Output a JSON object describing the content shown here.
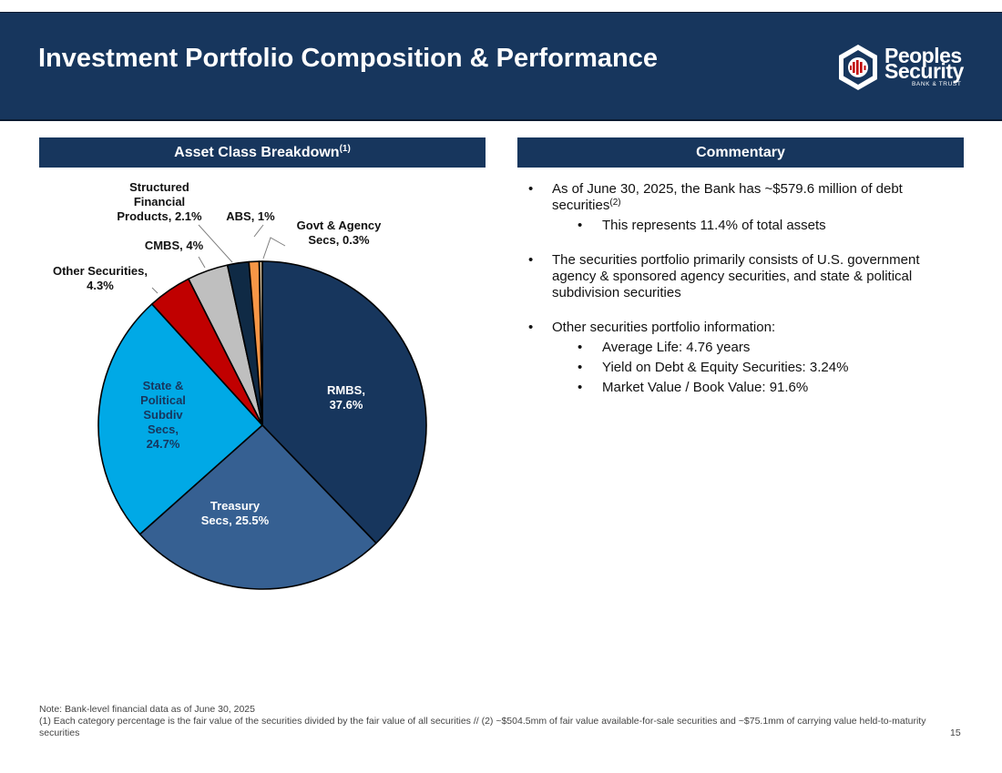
{
  "header": {
    "title": "Investment Portfolio Composition & Performance",
    "logo_line1": "Peoples",
    "logo_line2": "Security",
    "logo_tagline": "BANK & TRUST",
    "banner_color": "#17365d"
  },
  "left_panel": {
    "heading": "Asset Class Breakdown",
    "heading_note": "(1)"
  },
  "right_panel": {
    "heading": "Commentary",
    "bullets": [
      {
        "text": "As of June 30, 2025, the Bank has ~$579.6 million of debt securities",
        "note": "(2)",
        "sub": [
          "This represents 11.4% of total assets"
        ]
      },
      {
        "text": "The securities portfolio primarily consists of U.S. government agency & sponsored agency securities, and state & political subdivision securities",
        "sub": []
      },
      {
        "text": "Other securities portfolio information:",
        "sub": [
          "Average Life: 4.76 years",
          "Yield on Debt & Equity Securities: 3.24%",
          "Market Value / Book Value: 91.6%"
        ]
      }
    ]
  },
  "chart_data": {
    "type": "pie",
    "title": "Asset Class Breakdown",
    "start": "12 o'clock, clockwise",
    "slices": [
      {
        "name": "RMBS",
        "value": 37.6,
        "color": "#17365d",
        "label_lines": [
          "RMBS,",
          "37.6%"
        ],
        "label_color": "#ffffff"
      },
      {
        "name": "Treasury Secs",
        "value": 25.5,
        "color": "#366092",
        "label_lines": [
          "Treasury",
          "Secs, 25.5%"
        ],
        "label_color": "#ffffff"
      },
      {
        "name": "State & Political Subdiv Secs",
        "value": 24.7,
        "color": "#00a9e6",
        "label_lines": [
          "State &",
          "Political",
          "Subdiv",
          "Secs,",
          "24.7%"
        ],
        "label_color": "#17365d"
      },
      {
        "name": "Other Securities",
        "value": 4.3,
        "color": "#c00000",
        "label_lines": [
          "Other Securities,",
          "4.3%"
        ],
        "label_color": "#111111"
      },
      {
        "name": "CMBS",
        "value": 4,
        "color": "#bfbfbf",
        "label_lines": [
          "CMBS, 4%"
        ],
        "label_color": "#111111"
      },
      {
        "name": "Structured Financial Products",
        "value": 2.1,
        "color": "#0f2a45",
        "label_lines": [
          "Structured",
          "Financial",
          "Products, 2.1%"
        ],
        "label_color": "#111111"
      },
      {
        "name": "ABS",
        "value": 1,
        "color": "#f79646",
        "label_lines": [
          "ABS, 1%"
        ],
        "label_color": "#111111"
      },
      {
        "name": "Govt & Agency Secs",
        "value": 0.3,
        "color": "#dcc5a0",
        "label_lines": [
          "Govt & Agency",
          "Secs, 0.3%"
        ],
        "label_color": "#111111"
      }
    ]
  },
  "footer": {
    "note_line1": "Note: Bank-level financial data as of June 30, 2025",
    "note_line2": "(1) Each category percentage is the fair value of the securities divided by the fair value of all securities // (2) ~$504.5mm of fair value available-for-sale securities and ~$75.1mm of carrying value held-to-maturity securities",
    "page_number": "15"
  }
}
